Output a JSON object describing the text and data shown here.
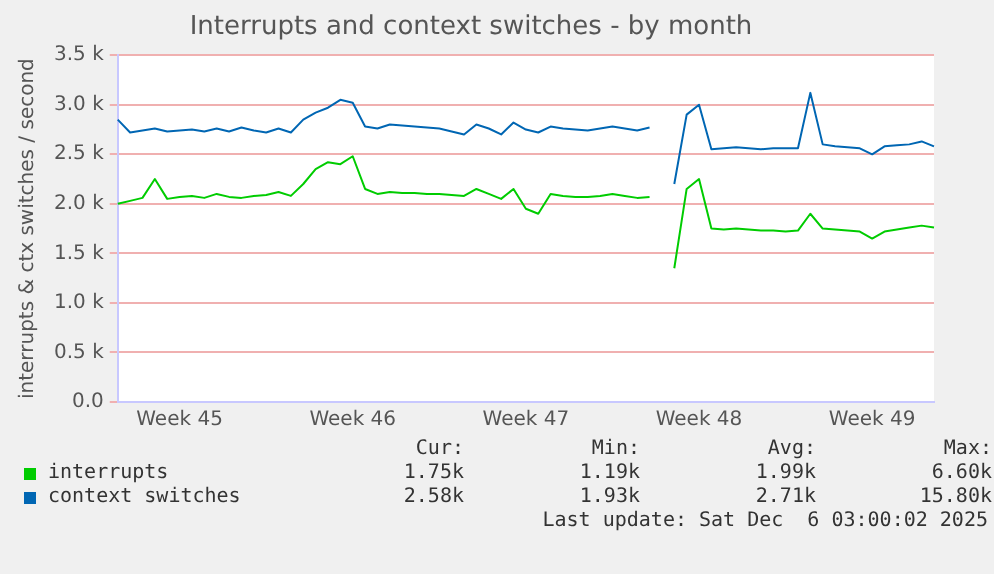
{
  "chart_data": {
    "type": "line",
    "title": "Interrupts and context switches - by month",
    "ylabel": "interrupts & ctx switches / second",
    "categories": [
      null,
      null,
      null,
      null,
      null,
      "Week 45",
      null,
      null,
      null,
      null,
      null,
      null,
      null,
      null,
      null,
      null,
      null,
      null,
      null,
      "Week 46",
      null,
      null,
      null,
      null,
      null,
      null,
      null,
      null,
      null,
      null,
      null,
      null,
      null,
      "Week 47",
      null,
      null,
      null,
      null,
      null,
      null,
      null,
      null,
      null,
      null,
      null,
      null,
      null,
      "Week 48",
      null,
      null,
      null,
      null,
      null,
      null,
      null,
      null,
      null,
      null,
      null,
      null,
      null,
      "Week 49",
      null,
      null,
      null,
      null,
      null
    ],
    "ylim": [
      0,
      3500
    ],
    "yticks": [
      {
        "value": 0,
        "label": "0.0"
      },
      {
        "value": 500,
        "label": "0.5 k"
      },
      {
        "value": 1000,
        "label": "1.0 k"
      },
      {
        "value": 1500,
        "label": "1.5 k"
      },
      {
        "value": 2000,
        "label": "2.0 k"
      },
      {
        "value": 2500,
        "label": "2.5 k"
      },
      {
        "value": 3000,
        "label": "3.0 k"
      },
      {
        "value": 3500,
        "label": "3.5 k"
      }
    ],
    "series": [
      {
        "name": "interrupts",
        "color": "#00cc00",
        "values": [
          2000,
          2030,
          2060,
          2250,
          2050,
          2070,
          2080,
          2060,
          2100,
          2070,
          2060,
          2080,
          2090,
          2120,
          2080,
          2200,
          2350,
          2420,
          2400,
          2480,
          2150,
          2100,
          2120,
          2110,
          2110,
          2100,
          2100,
          2090,
          2080,
          2150,
          2100,
          2050,
          2150,
          1950,
          1900,
          2100,
          2080,
          2070,
          2070,
          2080,
          2100,
          2080,
          2060,
          2070,
          null,
          1350,
          2150,
          2250,
          1750,
          1740,
          1750,
          1740,
          1730,
          1730,
          1720,
          1730,
          1900,
          1750,
          1740,
          1730,
          1720,
          1650,
          1720,
          1740,
          1760,
          1780,
          1760
        ]
      },
      {
        "name": "context switches",
        "color": "#0066b3",
        "values": [
          2850,
          2720,
          2740,
          2760,
          2730,
          2740,
          2750,
          2730,
          2760,
          2730,
          2770,
          2740,
          2720,
          2760,
          2720,
          2850,
          2920,
          2970,
          3050,
          3020,
          2780,
          2760,
          2800,
          2790,
          2780,
          2770,
          2760,
          2730,
          2700,
          2800,
          2760,
          2700,
          2820,
          2750,
          2720,
          2780,
          2760,
          2750,
          2740,
          2760,
          2780,
          2760,
          2740,
          2770,
          null,
          2200,
          2900,
          3000,
          2550,
          2560,
          2570,
          2560,
          2550,
          2560,
          2560,
          2560,
          3120,
          2600,
          2580,
          2570,
          2560,
          2500,
          2580,
          2590,
          2600,
          2630,
          2580
        ]
      }
    ],
    "grid": "y",
    "legend": "bottom",
    "annotations": [
      "Cur:",
      "Min:",
      "Avg:",
      "Max:",
      "1.75k",
      "1.19k",
      "1.99k",
      "6.60k",
      "2.58k",
      "1.93k",
      "2.71k",
      "15.80k",
      "Last update: Sat Dec  6 03:00:02 2025"
    ]
  }
}
